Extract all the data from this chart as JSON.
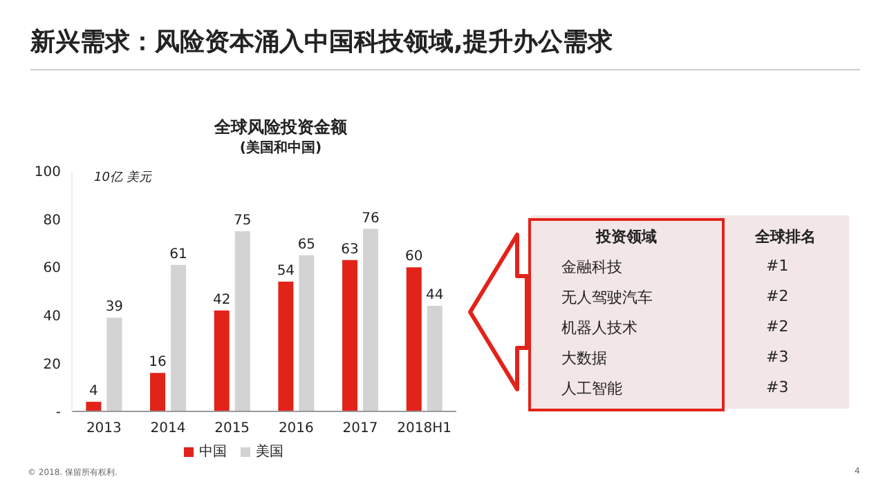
{
  "chart_data": [
    {
      "type": "bar",
      "title": "全球风险投资金额",
      "subtitle": "(美国和中国)",
      "ylabel": "10亿 美元",
      "annotations": [
        "新兴需求：风险资本涌入中国科技领域,提升办公需求",
        "© 2018. 保留所有权利.",
        "4"
      ],
      "categories": [
        "2013",
        "2014",
        "2015",
        "2016",
        "2017",
        "2018H1"
      ],
      "series": [
        {
          "name": "中国",
          "color": "#e2231a",
          "values": [
            4,
            16,
            42,
            54,
            63,
            60
          ]
        },
        {
          "name": "美国",
          "color": "#d3d3d3",
          "values": [
            39,
            61,
            75,
            65,
            76,
            44
          ]
        }
      ],
      "ylim": [
        0,
        100
      ],
      "yticks": [
        {
          "value": 0,
          "label": "-"
        },
        20,
        40,
        60,
        80,
        100
      ],
      "grid": false,
      "legend": "bottom",
      "data_labels": true
    },
    {
      "type": "other",
      "annotations": [
        "投资领域",
        "全球排名",
        "金融科技",
        "#1",
        "无人驾驶汽车",
        "#2",
        "机器人技术",
        "#2",
        "大数据",
        "#3",
        "人工智能",
        "#3"
      ]
    }
  ]
}
